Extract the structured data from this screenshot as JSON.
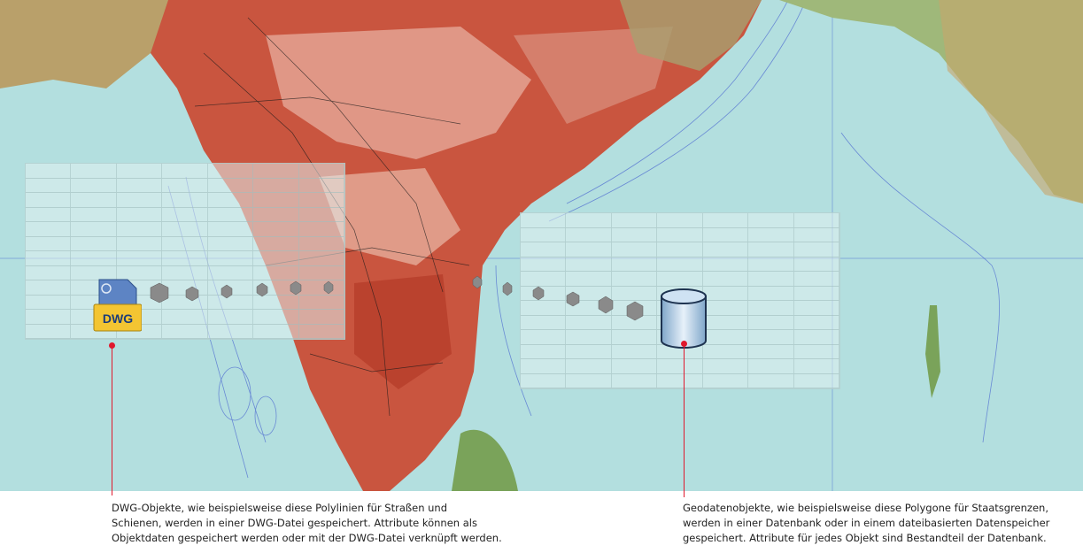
{
  "colors": {
    "sea": "#b3dfdf",
    "land_red": "#c0452f",
    "land_pale": "#e8b7a6",
    "accent": "#e0182d",
    "border_line": "#3a5fc8"
  },
  "icons": {
    "dwg": "dwg-file-icon",
    "database": "database-cylinder-icon"
  },
  "dwg_icon_label": "DWG",
  "captions": {
    "left": [
      "DWG-Objekte, wie beispielsweise diese Polylinien für Straßen und",
      "Schienen, werden in einer DWG-Datei gespeichert. Attribute können als",
      "Objektdaten gespeichert werden oder mit der DWG-Datei verknüpft werden."
    ],
    "right": [
      "Geodatenobjekte, wie beispielsweise diese Polygone für Staatsgrenzen,",
      "werden in einer Datenbank oder in einem dateibasierten Datenspeicher",
      "gespeichert. Attribute für jedes Objekt sind Bestandteil der Datenbank."
    ]
  }
}
